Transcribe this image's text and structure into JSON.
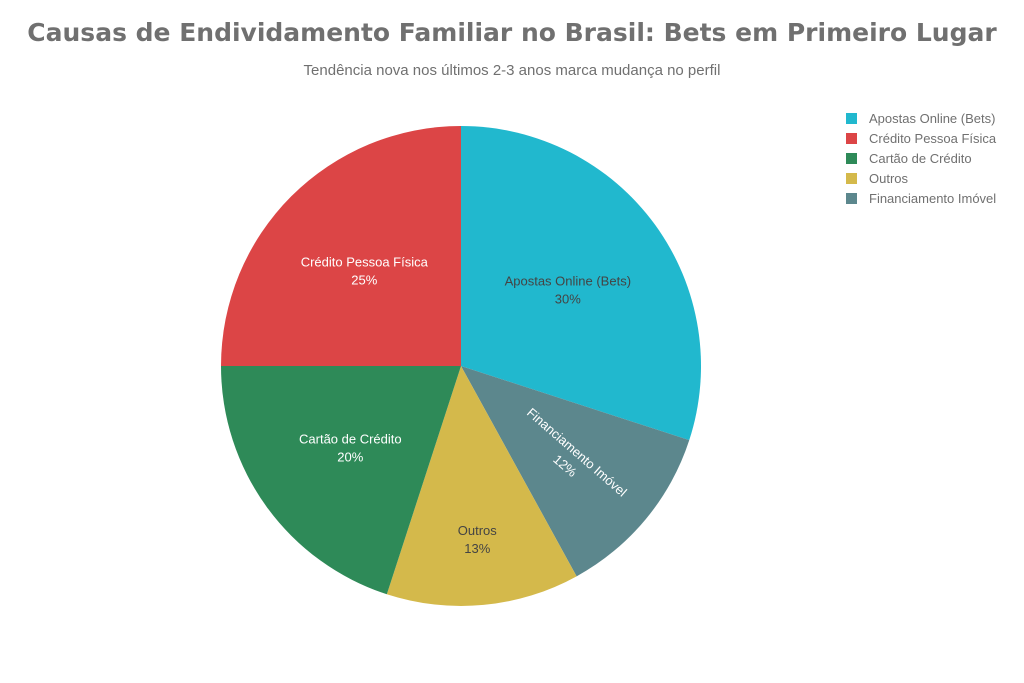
{
  "chart_data": {
    "type": "pie",
    "title": "Causas de Endividamento Familiar no Brasil: Bets em Primeiro Lugar",
    "subtitle": "Tendência nova nos últimos 2-3 anos marca mudança no perfil",
    "slices": [
      {
        "label": "Apostas Online (Bets)",
        "value": 30,
        "pct_label": "30%",
        "color": "#21b8ce",
        "text_color": "#444444"
      },
      {
        "label": "Financiamento Imóvel",
        "value": 12,
        "pct_label": "12%",
        "color": "#5c878d",
        "text_color": "#ffffff"
      },
      {
        "label": "Outros",
        "value": 13,
        "pct_label": "13%",
        "color": "#d4b94b",
        "text_color": "#444444"
      },
      {
        "label": "Cartão de Crédito",
        "value": 20,
        "pct_label": "20%",
        "color": "#2e8a58",
        "text_color": "#ffffff"
      },
      {
        "label": "Crédito Pessoa Física",
        "value": 25,
        "pct_label": "25%",
        "color": "#dc4546",
        "text_color": "#ffffff"
      }
    ],
    "legend": [
      "Apostas Online (Bets)",
      "Crédito Pessoa Física",
      "Cartão de Crédito",
      "Outros",
      "Financiamento Imóvel"
    ],
    "legend_colors": [
      "#21b8ce",
      "#dc4546",
      "#2e8a58",
      "#d4b94b",
      "#5c878d"
    ],
    "legend_placement": "top-right"
  }
}
